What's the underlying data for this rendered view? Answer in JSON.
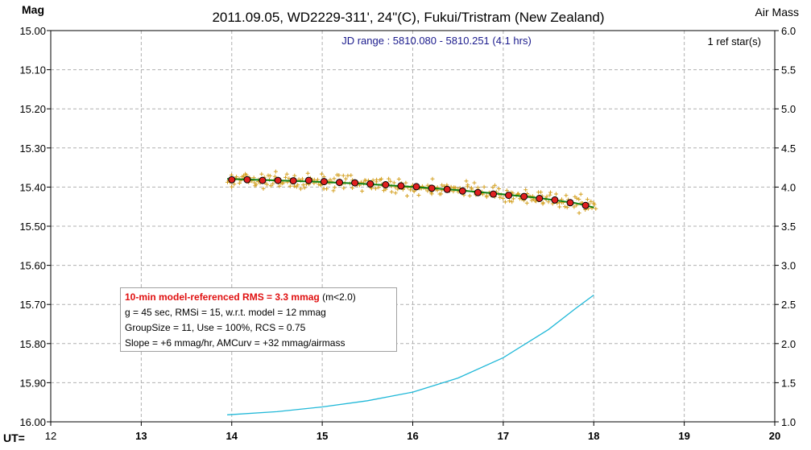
{
  "chart_data": {
    "type": "scatter",
    "title": "2011.09.05, WD2229-311', 24\"(C), Fukui/Tristram (New Zealand)",
    "ylabel": "Mag",
    "y2label": "Air Mass",
    "xlabel": "UT=",
    "xlim": [
      12,
      20
    ],
    "ylim": [
      15.0,
      16.0
    ],
    "y_inverted": true,
    "y2lim": [
      1.0,
      6.0
    ],
    "grid": true,
    "x_ticks": [
      "12",
      "13",
      "14",
      "15",
      "16",
      "17",
      "18",
      "19",
      "20"
    ],
    "y_ticks": [
      "15.00",
      "15.10",
      "15.20",
      "15.30",
      "15.40",
      "15.50",
      "15.60",
      "15.70",
      "15.80",
      "15.90",
      "16.00"
    ],
    "y2_ticks": [
      "6.0",
      "5.5",
      "5.0",
      "4.5",
      "4.0",
      "3.5",
      "3.0",
      "2.5",
      "2.0",
      "1.5",
      "1.0"
    ],
    "jd_range_text": "JD range : 5810.080 - 5810.251 (4.1 hrs)",
    "ref_stars_text": "1 ref star(s)",
    "colors": {
      "raw_points": "#d4a020",
      "binned_points": "#e02020",
      "model_line": "#108010",
      "airmass_line": "#20b8d8",
      "jd_text": "#1a1a8c",
      "grid": "#b0b0b0"
    },
    "series": [
      {
        "name": "",
        "kind": "binned",
        "x": [
          14.0,
          14.17,
          14.34,
          14.51,
          14.68,
          14.85,
          15.02,
          15.19,
          15.36,
          15.53,
          15.7,
          15.87,
          16.04,
          16.21,
          16.38,
          16.55,
          16.72,
          16.89,
          17.06,
          17.23,
          17.4,
          17.57,
          17.74,
          17.91
        ],
        "values": [
          15.381,
          15.381,
          15.383,
          15.383,
          15.384,
          15.383,
          15.386,
          15.388,
          15.389,
          15.392,
          15.394,
          15.397,
          15.399,
          15.403,
          15.406,
          15.41,
          15.414,
          15.418,
          15.421,
          15.424,
          15.429,
          15.433,
          15.44,
          15.447
        ]
      },
      {
        "name": "",
        "kind": "model",
        "x": [
          13.95,
          14.4,
          14.9,
          15.4,
          15.9,
          16.4,
          16.9,
          17.4,
          17.8,
          18.0
        ],
        "values": [
          15.379,
          15.382,
          15.386,
          15.391,
          15.398,
          15.406,
          15.416,
          15.428,
          15.441,
          15.452
        ]
      },
      {
        "name": "",
        "kind": "airmass",
        "x": [
          13.95,
          14.5,
          15.0,
          15.5,
          16.0,
          16.5,
          17.0,
          17.5,
          17.8,
          18.0
        ],
        "values": [
          1.09,
          1.13,
          1.19,
          1.27,
          1.38,
          1.56,
          1.82,
          2.18,
          2.45,
          2.62
        ]
      }
    ]
  },
  "stats": {
    "line1_highlight": "10-min model-referenced RMS = 3.3 mmag",
    "line1_rest": " (m<2.0)",
    "line2": "g = 45 sec, RMSi = 15, w.r.t. model = 12 mmag",
    "line3": "GroupSize = 11, Use = 100%, RCS = 0.75",
    "line4": "Slope = +6 mmag/hr, AMCurv = +32 mmag/airmass"
  }
}
